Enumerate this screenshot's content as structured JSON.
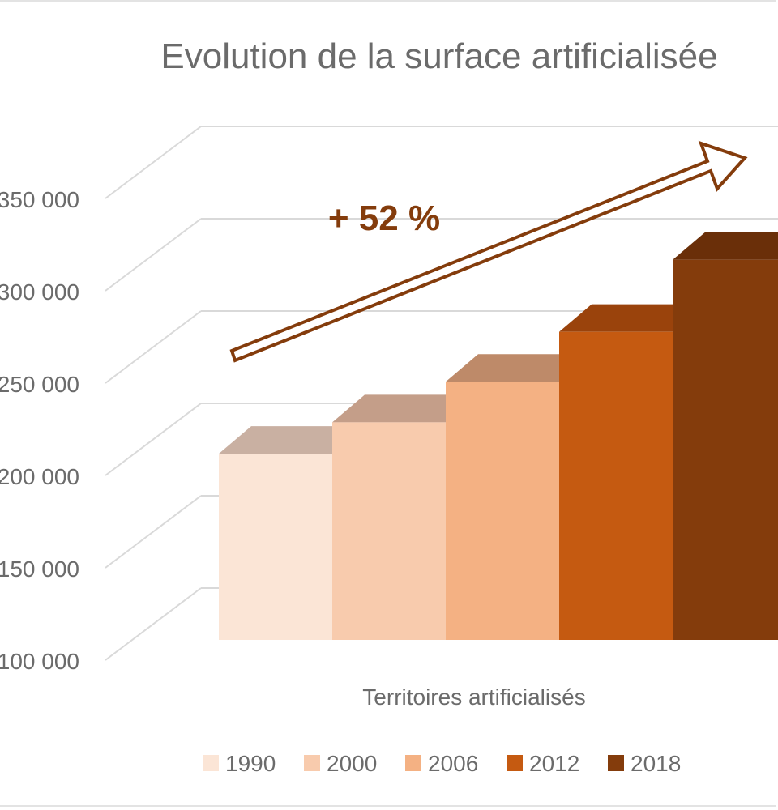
{
  "chart_data": {
    "type": "bar",
    "title": "Evolution de la surface artificialisée",
    "categories": [
      "Territoires artificialisés"
    ],
    "series": [
      {
        "name": "1990",
        "values": [
          203000
        ],
        "color": "#fbe5d6",
        "top_color": "#c9b0a2"
      },
      {
        "name": "2000",
        "values": [
          220000
        ],
        "color": "#f8cbad",
        "top_color": "#c49e89"
      },
      {
        "name": "2006",
        "values": [
          242000
        ],
        "color": "#f4b183",
        "top_color": "#be8a69"
      },
      {
        "name": "2012",
        "values": [
          269000
        ],
        "color": "#c55a11",
        "top_color": "#9a430c"
      },
      {
        "name": "2018",
        "values": [
          308000
        ],
        "color": "#843c0c",
        "top_color": "#6a2f09"
      }
    ],
    "y_ticks": [
      "100 000",
      "150 000",
      "200 000",
      "250 000",
      "300 000",
      "350 000"
    ],
    "y_tick_values": [
      100000,
      150000,
      200000,
      250000,
      300000,
      350000
    ],
    "ylim": [
      100000,
      350000
    ],
    "grid": true,
    "legend_position": "bottom",
    "annotation": {
      "text": "+ 52 %",
      "color": "#843c0c"
    },
    "colors": {
      "gridline": "#d9d9d9",
      "text": "#6b6b6b",
      "arrow": "#843c0c"
    }
  }
}
